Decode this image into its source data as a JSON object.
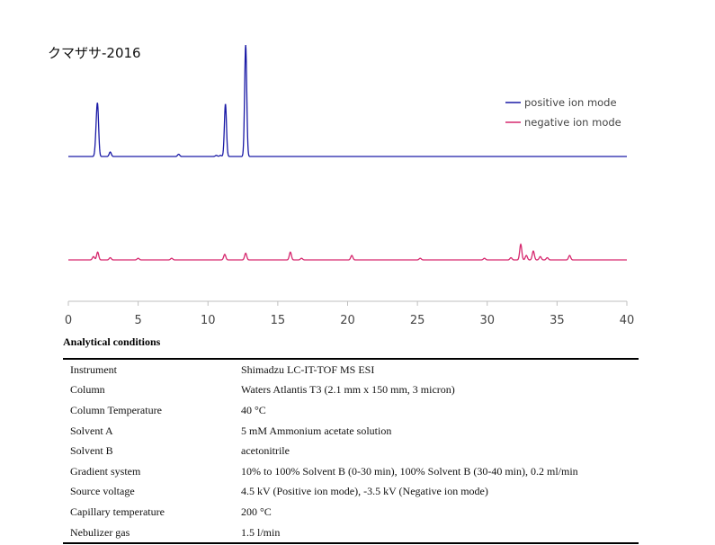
{
  "title": "クマザサ-2016",
  "chart_data": {
    "type": "line",
    "xlim": [
      0,
      40
    ],
    "xticks": [
      0,
      5,
      10,
      15,
      20,
      25,
      30,
      35,
      40
    ],
    "legend_position": "top-right",
    "series": [
      {
        "name": "positive ion mode",
        "color": "#1a1aa6",
        "peaks": [
          [
            2.0,
            0.17
          ],
          [
            2.1,
            0.4
          ],
          [
            3.0,
            0.04
          ],
          [
            7.9,
            0.02
          ],
          [
            10.6,
            0.01
          ],
          [
            10.9,
            0.01
          ],
          [
            11.25,
            0.47
          ],
          [
            12.7,
            1.0
          ]
        ]
      },
      {
        "name": "negative ion mode",
        "color": "#d6286e",
        "peaks": [
          [
            1.8,
            0.03
          ],
          [
            2.1,
            0.07
          ],
          [
            3.0,
            0.02
          ],
          [
            5.0,
            0.015
          ],
          [
            7.4,
            0.015
          ],
          [
            11.2,
            0.05
          ],
          [
            12.7,
            0.06
          ],
          [
            15.9,
            0.07
          ],
          [
            16.7,
            0.015
          ],
          [
            20.3,
            0.04
          ],
          [
            25.2,
            0.015
          ],
          [
            29.8,
            0.015
          ],
          [
            31.7,
            0.02
          ],
          [
            32.4,
            0.14
          ],
          [
            32.8,
            0.04
          ],
          [
            33.3,
            0.08
          ],
          [
            33.8,
            0.03
          ],
          [
            34.3,
            0.02
          ],
          [
            35.9,
            0.04
          ]
        ]
      }
    ]
  },
  "conditions": {
    "heading": "Analytical conditions",
    "rows": [
      {
        "label": "Instrument",
        "value": "Shimadzu LC-IT-TOF MS ESI"
      },
      {
        "label": "Column",
        "value": "Waters Atlantis T3 (2.1 mm x 150 mm, 3 micron)"
      },
      {
        "label": "Column Temperature",
        "value": "40 °C"
      },
      {
        "label": "Solvent A",
        "value": "5 mM Ammonium acetate solution"
      },
      {
        "label": "Solvent B",
        "value": "acetonitrile"
      },
      {
        "label": "Gradient system",
        "value": "10% to 100% Solvent B (0-30 min), 100% Solvent B (30-40 min), 0.2 ml/min"
      },
      {
        "label": "Source voltage",
        "value": "4.5 kV (Positive ion mode), -3.5 kV (Negative ion mode)"
      },
      {
        "label": "Capillary temperature",
        "value": "200 °C"
      },
      {
        "label": "Nebulizer gas",
        "value": "1.5 l/min"
      }
    ]
  }
}
